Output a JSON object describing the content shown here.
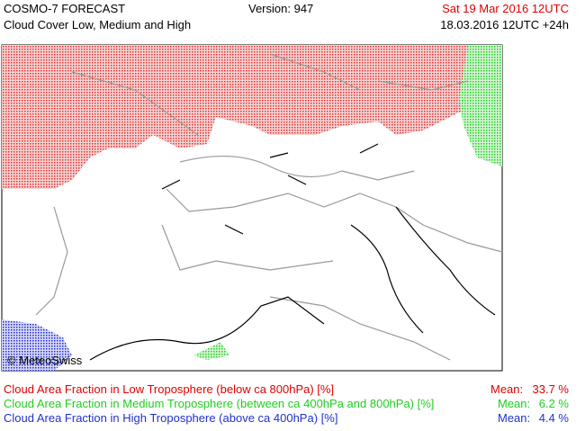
{
  "header": {
    "title": "COSMO-7 FORECAST",
    "subtitle": "Cloud Cover Low, Medium and High",
    "version": "Version: 947",
    "valid_time": "Sat 19 Mar 2016 12UTC",
    "run": "18.03.2016 12UTC +24h"
  },
  "map": {
    "credit": "© MeteoSwiss"
  },
  "legend": [
    {
      "label": "Cloud Area Fraction in Low Troposphere (below ca 800hPa) [%]",
      "mean_label": "Mean:",
      "mean": "33.7 %"
    },
    {
      "label": "Cloud Area Fraction in Medium Troposphere (between ca 400hPa and 800hPa) [%]",
      "mean_label": "Mean:",
      "mean": "6.2 %"
    },
    {
      "label": "Cloud Area Fraction in High Troposphere (above ca 400hPa) [%]",
      "mean_label": "Mean:",
      "mean": "4.4 %"
    }
  ]
}
